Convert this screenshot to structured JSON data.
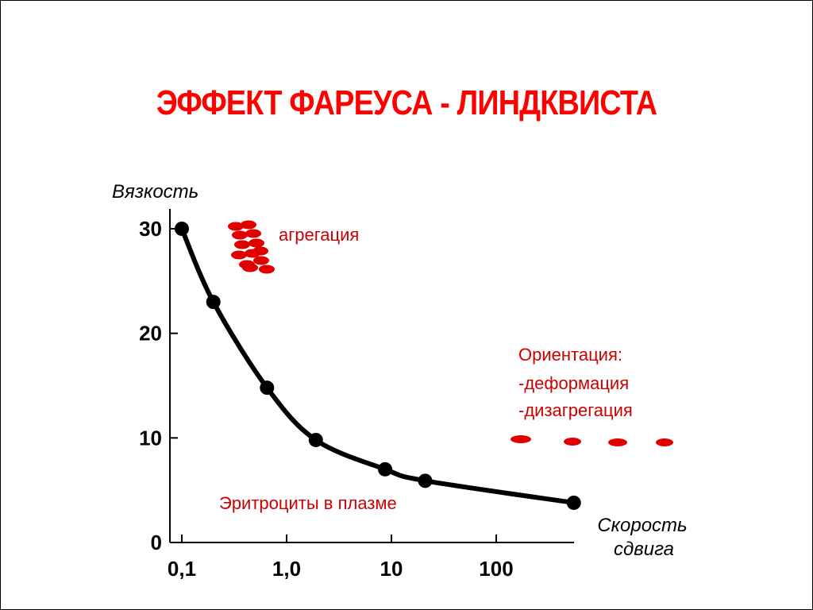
{
  "title": "ЭФФЕКТ  ФАРЕУСА - ЛИНДКВИСТА",
  "colors": {
    "title": "#ff0000",
    "annotation": "#cc0000",
    "cell": "#e00000",
    "curve": "#000000"
  },
  "chart_data": {
    "type": "line",
    "ylabel": "Вязкость",
    "xlabel": [
      "Скорость",
      "сдвига"
    ],
    "x_scale": "log",
    "x_ticks": [
      {
        "value": 0.1,
        "label": "0,1"
      },
      {
        "value": 1,
        "label": "1,0"
      },
      {
        "value": 10,
        "label": "10"
      },
      {
        "value": 100,
        "label": "100"
      }
    ],
    "y_ticks": [
      {
        "value": 0,
        "label": "0"
      },
      {
        "value": 10,
        "label": "10"
      },
      {
        "value": 20,
        "label": "20"
      },
      {
        "value": 30,
        "label": "30"
      }
    ],
    "xlim": [
      0.1,
      500
    ],
    "ylim": [
      0,
      30
    ],
    "grid": false,
    "series": [
      {
        "points": [
          {
            "x": 0.1,
            "y": 30
          },
          {
            "x": 0.2,
            "y": 23
          },
          {
            "x": 0.65,
            "y": 14.8
          },
          {
            "x": 1.9,
            "y": 9.8
          },
          {
            "x": 8.7,
            "y": 7
          },
          {
            "x": 21,
            "y": 5.9
          },
          {
            "x": 550,
            "y": 3.8
          }
        ]
      }
    ],
    "annotations": [
      {
        "id": "aggregation",
        "lines": [
          "агрегация"
        ]
      },
      {
        "id": "orientation",
        "lines": [
          "Ориентация:",
          "-деформация",
          "-дизагрегация"
        ]
      },
      {
        "id": "plasma",
        "lines": [
          "Эритроциты в плазме"
        ]
      }
    ]
  }
}
